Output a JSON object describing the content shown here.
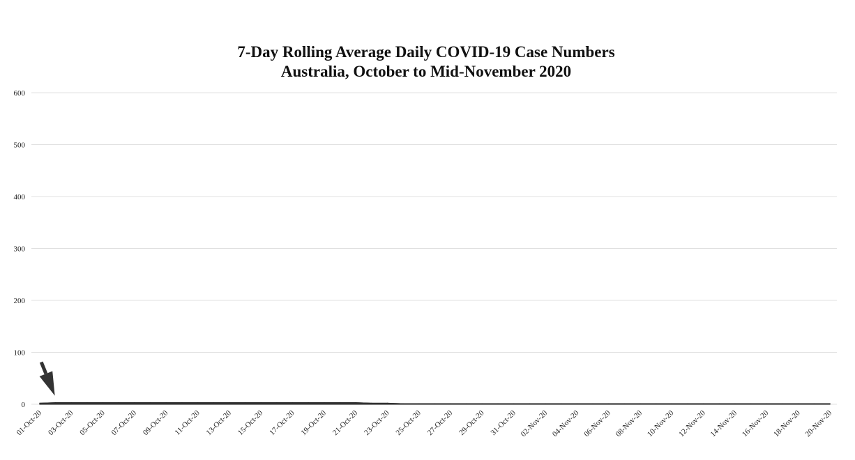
{
  "chart_data": {
    "type": "area",
    "title": "7-Day Rolling Average Daily COVID-19 Case Numbers",
    "subtitle": "Australia, October to Mid-November 2020",
    "xlabel": "",
    "ylabel": "",
    "ylim": [
      0,
      600
    ],
    "yticks": [
      0,
      100,
      200,
      300,
      400,
      500,
      600
    ],
    "grid": true,
    "legend": "none",
    "x": [
      "01-Oct-20",
      "02-Oct-20",
      "03-Oct-20",
      "04-Oct-20",
      "05-Oct-20",
      "06-Oct-20",
      "07-Oct-20",
      "08-Oct-20",
      "09-Oct-20",
      "10-Oct-20",
      "11-Oct-20",
      "12-Oct-20",
      "13-Oct-20",
      "14-Oct-20",
      "15-Oct-20",
      "16-Oct-20",
      "17-Oct-20",
      "18-Oct-20",
      "19-Oct-20",
      "20-Oct-20",
      "21-Oct-20",
      "22-Oct-20",
      "23-Oct-20",
      "24-Oct-20",
      "25-Oct-20",
      "26-Oct-20",
      "27-Oct-20",
      "28-Oct-20",
      "29-Oct-20",
      "30-Oct-20",
      "31-Oct-20",
      "01-Nov-20",
      "02-Nov-20",
      "03-Nov-20",
      "04-Nov-20",
      "05-Nov-20",
      "06-Nov-20",
      "07-Nov-20",
      "08-Nov-20",
      "09-Nov-20",
      "10-Nov-20",
      "11-Nov-20",
      "12-Nov-20",
      "13-Nov-20",
      "14-Nov-20",
      "15-Nov-20",
      "16-Nov-20",
      "17-Nov-20",
      "18-Nov-20",
      "19-Nov-20",
      "20-Nov-20"
    ],
    "xtick_labels": [
      "01-Oct-20",
      "03-Oct-20",
      "05-Oct-20",
      "07-Oct-20",
      "09-Oct-20",
      "11-Oct-20",
      "13-Oct-20",
      "15-Oct-20",
      "17-Oct-20",
      "19-Oct-20",
      "21-Oct-20",
      "23-Oct-20",
      "25-Oct-20",
      "27-Oct-20",
      "29-Oct-20",
      "31-Oct-20",
      "02-Nov-20",
      "04-Nov-20",
      "06-Nov-20",
      "08-Nov-20",
      "10-Nov-20",
      "12-Nov-20",
      "14-Nov-20",
      "16-Nov-20",
      "18-Nov-20",
      "20-Nov-20"
    ],
    "series": [
      {
        "values": [
          2,
          3,
          3,
          3,
          3,
          3,
          3,
          3,
          3,
          3,
          3,
          3,
          3,
          3,
          3,
          3,
          3,
          3,
          3,
          3,
          3,
          2,
          2,
          1,
          1,
          1,
          1,
          1,
          1,
          1,
          1,
          1,
          1,
          1,
          1,
          1,
          1,
          1,
          1,
          1,
          1,
          1,
          1,
          1,
          1,
          1,
          1,
          1,
          1,
          1,
          1
        ],
        "color": "#333333"
      }
    ],
    "annotations": [
      {
        "type": "arrow-icon",
        "x": "02-Oct-20",
        "y": 3,
        "color": "#333333"
      }
    ]
  }
}
